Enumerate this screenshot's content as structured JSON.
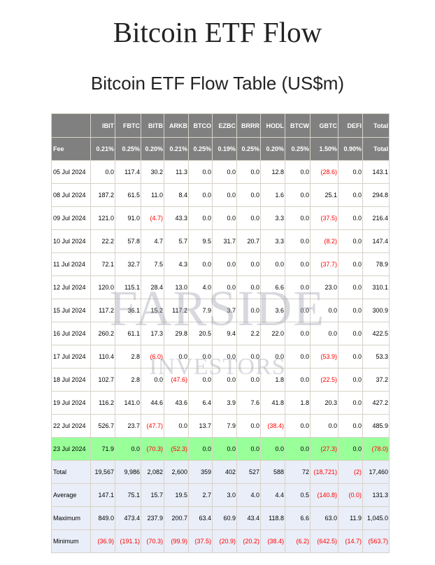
{
  "title": "Bitcoin ETF Flow",
  "subtitle": "Bitcoin ETF Flow Table (US$m)",
  "watermark": {
    "line1": "FARSIDE",
    "line2": "INVESTORS"
  },
  "colors": {
    "header_bg": "#808080",
    "negative": "#ff0000",
    "today_bg": "#99ff99",
    "summary_bg": "#eaeef8"
  },
  "table": {
    "columns": [
      "",
      "IBIT",
      "FBTC",
      "BITB",
      "ARKB",
      "BTCO",
      "EZBC",
      "BRRR",
      "HODL",
      "BTCW",
      "GBTC",
      "DEFI",
      "Total"
    ],
    "fees": [
      "Fee",
      "0.21%",
      "0.25%",
      "0.20%",
      "0.21%",
      "0.25%",
      "0.19%",
      "0.25%",
      "0.20%",
      "0.25%",
      "1.50%",
      "0.90%",
      "Total"
    ],
    "rows": [
      [
        "05 Jul 2024",
        "0.0",
        "117.4",
        "30.2",
        "11.3",
        "0.0",
        "0.0",
        "0.0",
        "12.8",
        "0.0",
        "(28.6)",
        "0.0",
        "143.1"
      ],
      [
        "08 Jul 2024",
        "187.2",
        "61.5",
        "11.0",
        "8.4",
        "0.0",
        "0.0",
        "0.0",
        "1.6",
        "0.0",
        "25.1",
        "0.0",
        "294.8"
      ],
      [
        "09 Jul 2024",
        "121.0",
        "91.0",
        "(4.7)",
        "43.3",
        "0.0",
        "0.0",
        "0.0",
        "3.3",
        "0.0",
        "(37.5)",
        "0.0",
        "216.4"
      ],
      [
        "10 Jul 2024",
        "22.2",
        "57.8",
        "4.7",
        "5.7",
        "9.5",
        "31.7",
        "20.7",
        "3.3",
        "0.0",
        "(8.2)",
        "0.0",
        "147.4"
      ],
      [
        "11 Jul 2024",
        "72.1",
        "32.7",
        "7.5",
        "4.3",
        "0.0",
        "0.0",
        "0.0",
        "0.0",
        "0.0",
        "(37.7)",
        "0.0",
        "78.9"
      ],
      [
        "12 Jul 2024",
        "120.0",
        "115.1",
        "28.4",
        "13.0",
        "4.0",
        "0.0",
        "0.0",
        "6.6",
        "0.0",
        "23.0",
        "0.0",
        "310.1"
      ],
      [
        "15 Jul 2024",
        "117.2",
        "36.1",
        "15.2",
        "117.2",
        "7.9",
        "3.7",
        "0.0",
        "3.6",
        "0.0",
        "0.0",
        "0.0",
        "300.9"
      ],
      [
        "16 Jul 2024",
        "260.2",
        "61.1",
        "17.3",
        "29.8",
        "20.5",
        "9.4",
        "2.2",
        "22.0",
        "0.0",
        "0.0",
        "0.0",
        "422.5"
      ],
      [
        "17 Jul 2024",
        "110.4",
        "2.8",
        "(6.0)",
        "0.0",
        "0.0",
        "0.0",
        "0.0",
        "0.0",
        "0.0",
        "(53.9)",
        "0.0",
        "53.3"
      ],
      [
        "18 Jul 2024",
        "102.7",
        "2.8",
        "0.0",
        "(47.6)",
        "0.0",
        "0.0",
        "0.0",
        "1.8",
        "0.0",
        "(22.5)",
        "0.0",
        "37.2"
      ],
      [
        "19 Jul 2024",
        "116.2",
        "141.0",
        "44.6",
        "43.6",
        "6.4",
        "3.9",
        "7.6",
        "41.8",
        "1.8",
        "20.3",
        "0.0",
        "427.2"
      ],
      [
        "22 Jul 2024",
        "526.7",
        "23.7",
        "(47.7)",
        "0.0",
        "13.7",
        "7.9",
        "0.0",
        "(38.4)",
        "0.0",
        "0.0",
        "0.0",
        "485.9"
      ],
      [
        "23 Jul 2024",
        "71.9",
        "0.0",
        "(70.3)",
        "(52.3)",
        "0.0",
        "0.0",
        "0.0",
        "0.0",
        "0.0",
        "(27.3)",
        "0.0",
        "(78.0)"
      ]
    ],
    "highlighted_row": "23 Jul 2024",
    "summary": [
      [
        "Total",
        "19,567",
        "9,986",
        "2,082",
        "2,600",
        "359",
        "402",
        "527",
        "588",
        "72",
        "(18,721)",
        "(2)",
        "17,460"
      ],
      [
        "Average",
        "147.1",
        "75.1",
        "15.7",
        "19.5",
        "2.7",
        "3.0",
        "4.0",
        "4.4",
        "0.5",
        "(140.8)",
        "(0.0)",
        "131.3"
      ],
      [
        "Maximum",
        "849.0",
        "473.4",
        "237.9",
        "200.7",
        "63.4",
        "60.9",
        "43.4",
        "118.8",
        "6.6",
        "63.0",
        "11.9",
        "1,045.0"
      ],
      [
        "Minimum",
        "(36.9)",
        "(191.1)",
        "(70.3)",
        "(99.9)",
        "(37.5)",
        "(20.9)",
        "(20.2)",
        "(38.4)",
        "(6.2)",
        "(642.5)",
        "(14.7)",
        "(563.7)"
      ]
    ]
  }
}
